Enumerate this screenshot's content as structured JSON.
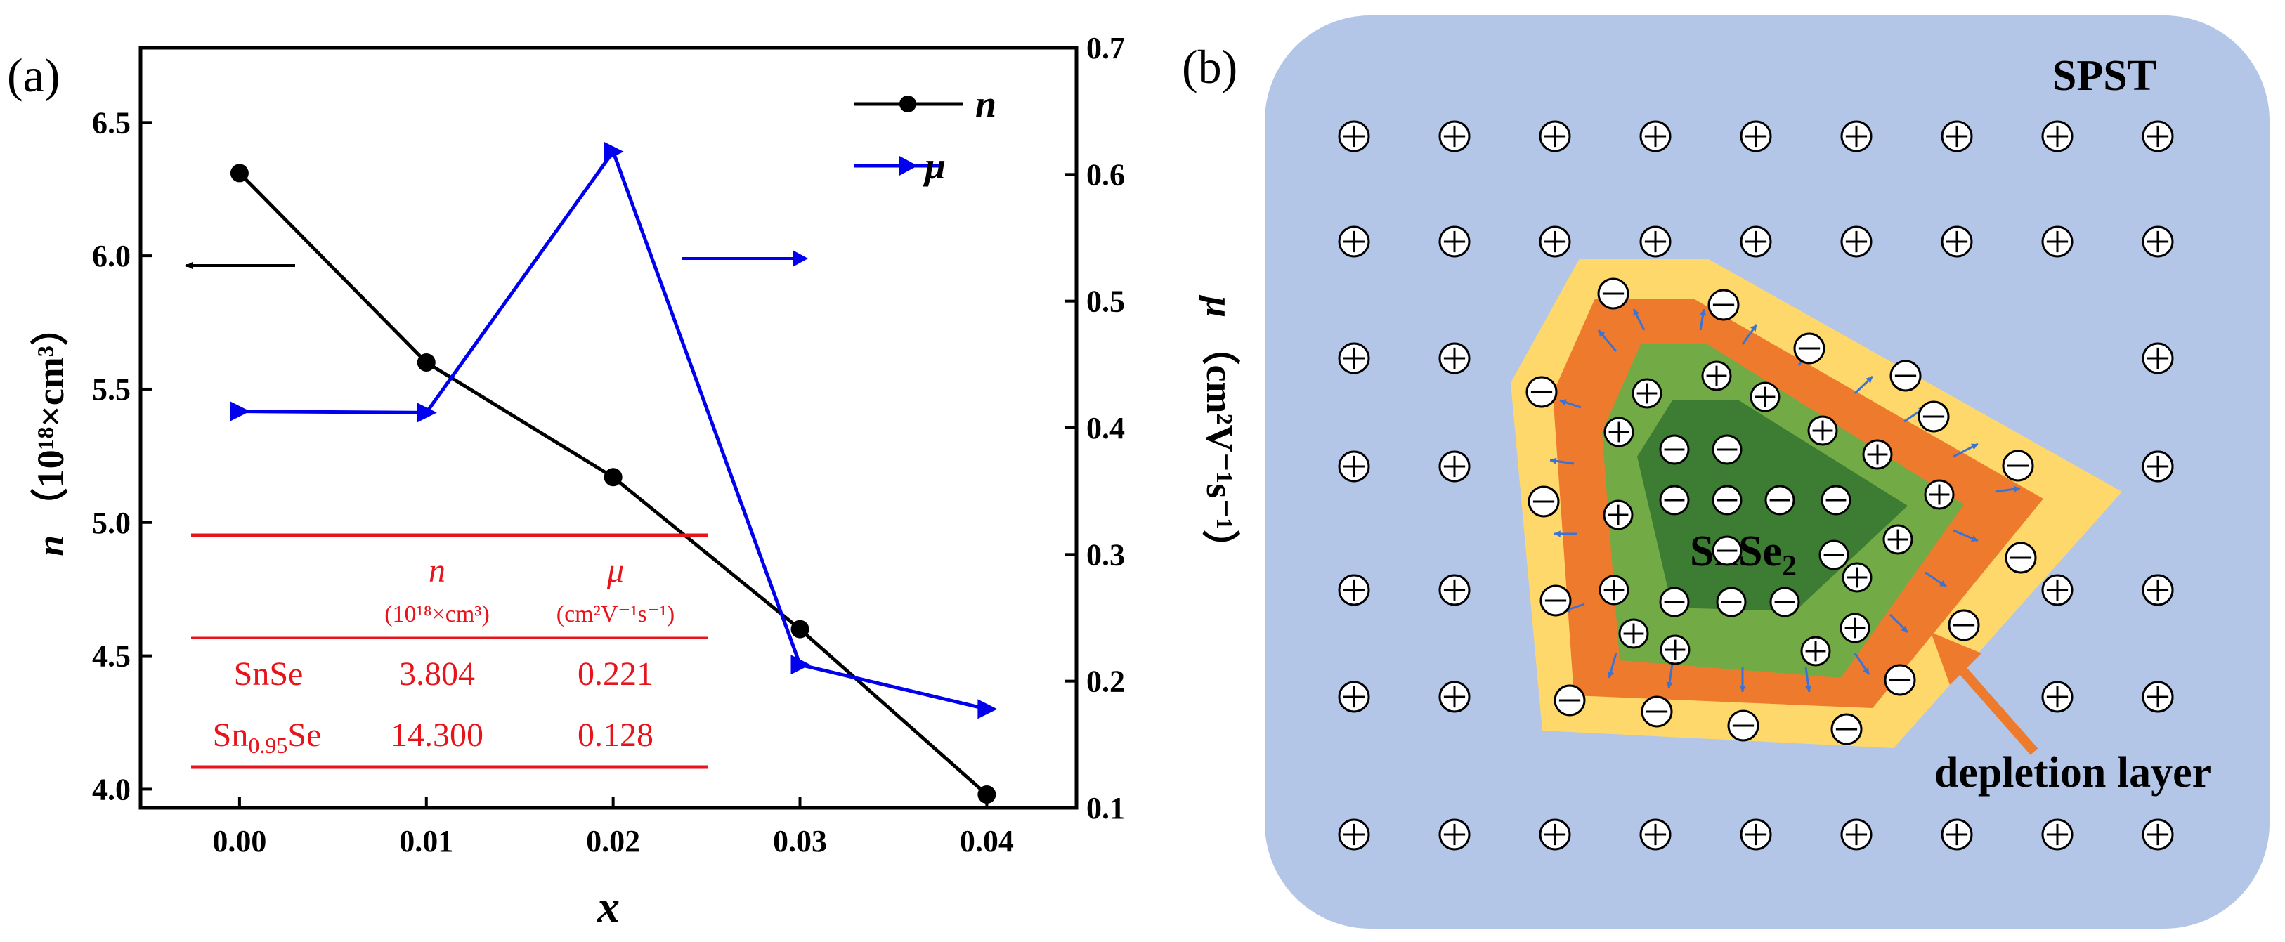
{
  "panels": {
    "a": {
      "label": "(a)"
    },
    "b": {
      "label": "(b)"
    }
  },
  "chart_data": {
    "type": "line",
    "x": [
      0.0,
      0.01,
      0.02,
      0.03,
      0.04
    ],
    "x_ticks": [
      0.0,
      0.01,
      0.02,
      0.03,
      0.04
    ],
    "x_tick_labels": [
      "0.00",
      "0.01",
      "0.02",
      "0.03",
      "0.04"
    ],
    "xlim": [
      -0.0053,
      0.0448
    ],
    "xlabel": "x",
    "series": [
      {
        "name": "n",
        "legend_label": "n",
        "axis": "left",
        "color": "#000000",
        "marker": "circle",
        "values": [
          6.31,
          5.6,
          5.17,
          4.6,
          3.98
        ]
      },
      {
        "name": "μ",
        "legend_label": "μ",
        "axis": "right",
        "color": "#0000ee",
        "marker": "right-triangle",
        "values": [
          0.413,
          0.412,
          0.618,
          0.213,
          0.178
        ]
      }
    ],
    "y_left": {
      "label_symbol": "n",
      "label_unit": "（10¹⁸×cm³）",
      "lim": [
        3.93,
        6.78
      ],
      "ticks": [
        4.0,
        4.5,
        5.0,
        5.5,
        6.0,
        6.5
      ],
      "tick_labels": [
        "4.0",
        "4.5",
        "5.0",
        "5.5",
        "6.0",
        "6.5"
      ]
    },
    "y_right": {
      "label_symbol": "μ",
      "label_unit": "（cm²V⁻¹s⁻¹）",
      "lim": [
        0.1,
        0.7
      ],
      "ticks": [
        0.1,
        0.2,
        0.3,
        0.4,
        0.5,
        0.6,
        0.7
      ],
      "tick_labels": [
        "0.1",
        "0.2",
        "0.3",
        "0.4",
        "0.5",
        "0.6",
        "0.7"
      ]
    },
    "annotations": [
      {
        "type": "arrow",
        "direction": "left",
        "refers_to": "n"
      },
      {
        "type": "arrow",
        "direction": "right",
        "refers_to": "μ"
      }
    ],
    "inset_table": {
      "color": "#e8141b",
      "headers": [
        {
          "main": "n",
          "unit": "(10¹⁸×cm³)"
        },
        {
          "main": "μ",
          "unit": "(cm²V⁻¹s⁻¹)"
        }
      ],
      "rows": [
        {
          "sample": "SnSe",
          "n": "3.804",
          "mu": "0.221"
        },
        {
          "sample": "Sn",
          "sample_sub": "0.95",
          "sample_tail": "Se",
          "n": "14.300",
          "mu": "0.128"
        }
      ]
    }
  },
  "diagram": {
    "matrix_label": "SPST",
    "particle_label": "SnSe",
    "particle_label_sub": "2",
    "depletion_label": "depletion layer",
    "colors": {
      "matrix": "#b3c6e7",
      "depletion_outer": "#fed86b",
      "depletion_inner": "#ee7a2e",
      "particle_shell": "#72ab46",
      "particle_core": "#3c7c33",
      "field_arrow": "#3a73d4"
    },
    "positive_charge": "⊕",
    "negative_charge": "⊖"
  }
}
